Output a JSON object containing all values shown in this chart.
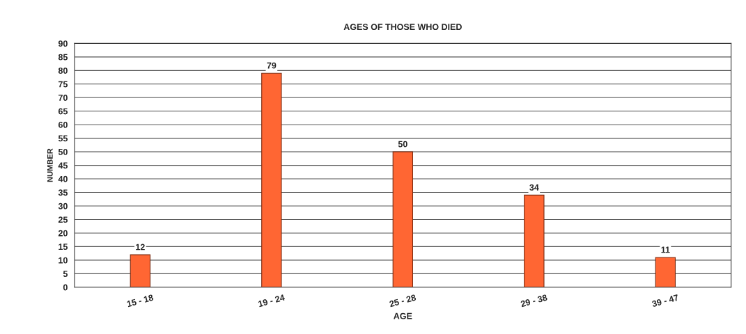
{
  "chart_data": {
    "type": "bar",
    "title": "AGES OF THOSE WHO DIED",
    "xlabel": "AGE",
    "ylabel": "NUMBER",
    "categories": [
      "15 - 18",
      "19 - 24",
      "25 - 28",
      "29 - 38",
      "39 - 47"
    ],
    "values": [
      12,
      79,
      50,
      34,
      11
    ],
    "color": "#ff6633",
    "ylim": [
      0,
      90
    ],
    "yticks": [
      0,
      5,
      10,
      15,
      20,
      25,
      30,
      35,
      40,
      45,
      50,
      55,
      60,
      65,
      70,
      75,
      80,
      85,
      90
    ],
    "grid": "y",
    "data_labels": true
  }
}
